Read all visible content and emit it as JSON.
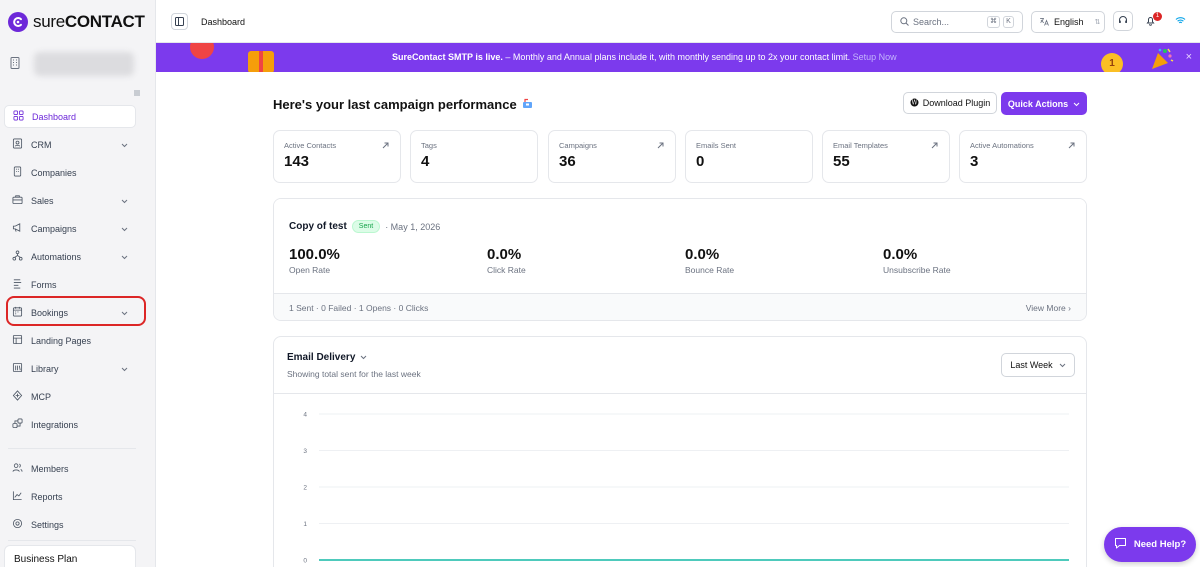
{
  "app": {
    "logo_text": "sureCONTACT",
    "logo_text_light": "sure",
    "logo_text_bold": "CONTACT"
  },
  "sidebar": {
    "items": [
      {
        "label": "Dashboard",
        "icon": "dashboard-icon",
        "active": true,
        "chevron": false
      },
      {
        "label": "CRM",
        "icon": "crm-icon",
        "chevron": true
      },
      {
        "label": "Companies",
        "icon": "building-icon",
        "chevron": false
      },
      {
        "label": "Sales",
        "icon": "briefcase-icon",
        "chevron": true
      },
      {
        "label": "Campaigns",
        "icon": "megaphone-icon",
        "chevron": true
      },
      {
        "label": "Automations",
        "icon": "automation-icon",
        "chevron": true
      },
      {
        "label": "Forms",
        "icon": "form-icon",
        "chevron": false
      },
      {
        "label": "Bookings",
        "icon": "calendar-icon",
        "chevron": true,
        "highlighted": true
      },
      {
        "label": "Landing Pages",
        "icon": "layout-icon",
        "chevron": false
      },
      {
        "label": "Library",
        "icon": "library-icon",
        "chevron": true
      },
      {
        "label": "MCP",
        "icon": "mcp-icon",
        "chevron": false
      },
      {
        "label": "Integrations",
        "icon": "integrations-icon",
        "chevron": false
      },
      {
        "label": "Members",
        "icon": "users-icon",
        "chevron": false
      },
      {
        "label": "Reports",
        "icon": "chart-icon",
        "chevron": false
      },
      {
        "label": "Settings",
        "icon": "gear-icon",
        "chevron": false
      }
    ],
    "plan_label": "Business Plan"
  },
  "topbar": {
    "title": "Dashboard",
    "search_placeholder": "Search...",
    "search_kbd_1": "⌘",
    "search_kbd_2": "K",
    "language": "English",
    "notification_count": "1"
  },
  "banner": {
    "bold_text": "SureContact SMTP is live.",
    "text": " – Monthly and Annual plans include it, with monthly sending up to 2x your contact limit.",
    "link": "Setup Now",
    "medal_text": "1",
    "close": "×"
  },
  "main": {
    "heading": "Here's your last campaign performance",
    "download_button": "Download Plugin",
    "quick_actions_button": "Quick Actions",
    "stats": [
      {
        "label": "Active Contacts",
        "value": "143",
        "arrow": true
      },
      {
        "label": "Tags",
        "value": "4",
        "arrow": false
      },
      {
        "label": "Campaigns",
        "value": "36",
        "arrow": true
      },
      {
        "label": "Emails Sent",
        "value": "0",
        "arrow": false
      },
      {
        "label": "Email Templates",
        "value": "55",
        "arrow": true
      },
      {
        "label": "Active Automations",
        "value": "3",
        "arrow": true
      }
    ],
    "campaign": {
      "title": "Copy of test",
      "status": "Sent",
      "date": "· May 1, 2026",
      "metrics": [
        {
          "value": "100.0%",
          "label": "Open Rate"
        },
        {
          "value": "0.0%",
          "label": "Click Rate"
        },
        {
          "value": "0.0%",
          "label": "Bounce Rate"
        },
        {
          "value": "0.0%",
          "label": "Unsubscribe Rate"
        }
      ],
      "summary": "1 Sent · 0 Failed · 1 Opens · 0 Clicks",
      "view_more": "View More"
    },
    "delivery": {
      "title": "Email Delivery",
      "subtitle": "Showing total sent for the last week",
      "range": "Last Week"
    }
  },
  "chart_data": {
    "type": "line",
    "y_ticks": [
      "4",
      "3",
      "2",
      "1",
      "0"
    ],
    "ylim": [
      0,
      4
    ],
    "series": [
      {
        "values": [
          0,
          0,
          0,
          0,
          0,
          0,
          0
        ]
      }
    ],
    "line_color": "#14b8a6"
  },
  "help_button": "Need Help?",
  "colors": {
    "brand": "#7c3aed",
    "highlight": "#dc2626"
  }
}
